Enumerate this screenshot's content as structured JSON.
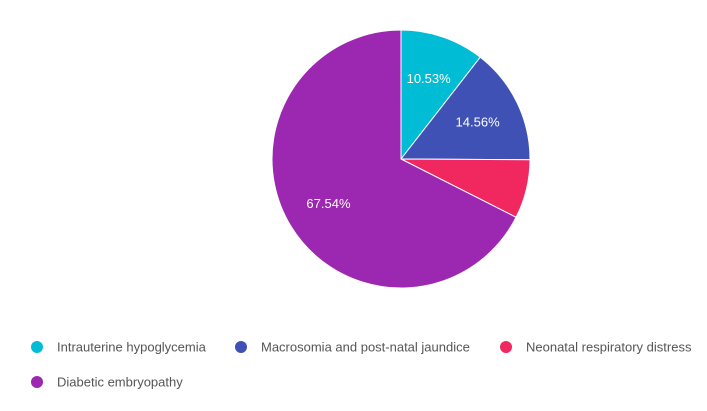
{
  "chart_data": {
    "type": "pie",
    "title": "",
    "series": [
      {
        "name": "Intrauterine hypoglycemia",
        "value": 10.53,
        "label": "10.53%",
        "color": "#00BCD4"
      },
      {
        "name": "Macrosomia and post-natal jaundice",
        "value": 14.56,
        "label": "14.56%",
        "color": "#3F51B5"
      },
      {
        "name": "Neonatal respiratory distress",
        "value": 7.37,
        "label": "",
        "color": "#F0285F"
      },
      {
        "name": "Diabetic embryopathy",
        "value": 67.54,
        "label": "67.54%",
        "color": "#9C27B0"
      }
    ],
    "legend": {
      "position": "bottom"
    },
    "start_angle": "12 o'clock",
    "direction": "clockwise"
  }
}
